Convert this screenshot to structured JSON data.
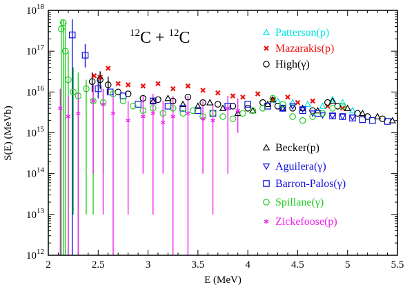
{
  "chart_data": {
    "type": "scatter",
    "title": "",
    "annotation": {
      "a": "12",
      "b": "C + ",
      "c": "12",
      "d": "C"
    },
    "xlabel": "E (MeV)",
    "ylabel": "S(E) (MeVb)",
    "xlim": [
      2,
      5.5
    ],
    "ylim_log10": [
      12,
      18
    ],
    "y_scale": "log",
    "x_ticks": [
      "2",
      "2.5",
      "3",
      "3.5",
      "4",
      "4.5",
      "5",
      "5.5"
    ],
    "x_tick_values": [
      2,
      2.5,
      3,
      3.5,
      4,
      4.5,
      5,
      5.5
    ],
    "y_ticks": [
      {
        "base": "10",
        "exp": "12"
      },
      {
        "base": "10",
        "exp": "13"
      },
      {
        "base": "10",
        "exp": "14"
      },
      {
        "base": "10",
        "exp": "15"
      },
      {
        "base": "10",
        "exp": "16"
      },
      {
        "base": "10",
        "exp": "17"
      },
      {
        "base": "10",
        "exp": "18"
      }
    ],
    "legend_placement": "right",
    "series": [
      {
        "name": "Patterson(p)",
        "color": "#00e5e5",
        "marker": "triangle-up",
        "points": [
          [
            4.3,
            6000000000000000.0
          ],
          [
            4.45,
            5500000000000000.0
          ],
          [
            4.6,
            5000000000000000.0
          ],
          [
            4.75,
            4500000000000000.0
          ],
          [
            4.85,
            6500000000000000.0
          ],
          [
            4.95,
            5500000000000000.0
          ],
          [
            5.05,
            3500000000000000.0
          ]
        ],
        "errors": []
      },
      {
        "name": "Mazarakis(p)",
        "color": "#ee1111",
        "marker": "x-cross",
        "points": [
          [
            2.46,
            2.5e+16
          ],
          [
            2.52,
            2.3e+16
          ],
          [
            2.6,
            3.8e+16
          ],
          [
            2.7,
            1.6e+16
          ],
          [
            2.8,
            1.5e+16
          ],
          [
            2.95,
            1.4e+16
          ],
          [
            3.1,
            1.6e+16
          ],
          [
            3.25,
            1.2e+16
          ],
          [
            3.4,
            1.4e+16
          ],
          [
            3.55,
            1.1e+16
          ],
          [
            3.7,
            9500000000000000.0
          ],
          [
            3.85,
            8000000000000000.0
          ],
          [
            3.95,
            7500000000000000.0
          ],
          [
            4.1,
            9000000000000000.0
          ],
          [
            4.25,
            6500000000000000.0
          ],
          [
            4.4,
            7500000000000000.0
          ],
          [
            4.5,
            5500000000000000.0
          ],
          [
            4.65,
            6000000000000000.0
          ],
          [
            4.8,
            4500000000000000.0
          ],
          [
            4.95,
            4000000000000000.0
          ]
        ],
        "errors": []
      },
      {
        "name": "High(γ)",
        "color": "#000000",
        "marker": "circle",
        "points": [
          [
            2.44,
            1.8e+16
          ],
          [
            2.52,
            2e+16
          ],
          [
            2.6,
            1.5e+16
          ],
          [
            2.7,
            1e+16
          ],
          [
            2.8,
            9000000000000000.0
          ],
          [
            2.95,
            7000000000000000.0
          ],
          [
            3.1,
            6500000000000000.0
          ],
          [
            3.25,
            6000000000000000.0
          ],
          [
            3.4,
            7500000000000000.0
          ],
          [
            3.55,
            5500000000000000.0
          ],
          [
            3.7,
            5000000000000000.0
          ],
          [
            3.85,
            4500000000000000.0
          ],
          [
            4.0,
            4000000000000000.0
          ],
          [
            4.15,
            5500000000000000.0
          ],
          [
            4.3,
            4500000000000000.0
          ],
          [
            4.45,
            4000000000000000.0
          ],
          [
            4.65,
            3500000000000000.0
          ],
          [
            4.8,
            5500000000000000.0
          ],
          [
            4.9,
            4500000000000000.0
          ],
          [
            5.1,
            3000000000000000.0
          ],
          [
            5.2,
            2500000000000000.0
          ],
          [
            5.35,
            2200000000000000.0
          ]
        ],
        "errors": [
          [
            2.44,
            1e+16,
            3e+16
          ],
          [
            2.52,
            1.2e+16,
            3.2e+16
          ],
          [
            2.6,
            9000000000000000.0,
            2.4e+16
          ]
        ]
      },
      {
        "name": "Becker(p)",
        "color": "#000000",
        "marker": "triangle-up-open",
        "points": [
          [
            3.05,
            6000000000000000.0
          ],
          [
            3.2,
            7000000000000000.0
          ],
          [
            3.35,
            5000000000000000.0
          ],
          [
            3.5,
            4500000000000000.0
          ],
          [
            3.62,
            5500000000000000.0
          ],
          [
            3.75,
            4000000000000000.0
          ],
          [
            3.9,
            3000000000000000.0
          ],
          [
            4.05,
            3500000000000000.0
          ],
          [
            4.2,
            5000000000000000.0
          ],
          [
            4.25,
            6500000000000000.0
          ],
          [
            4.35,
            4000000000000000.0
          ],
          [
            4.55,
            4000000000000000.0
          ],
          [
            4.7,
            3500000000000000.0
          ],
          [
            4.85,
            6000000000000000.0
          ],
          [
            5.0,
            4000000000000000.0
          ],
          [
            5.15,
            3000000000000000.0
          ],
          [
            5.3,
            2500000000000000.0
          ],
          [
            5.45,
            2000000000000000.0
          ]
        ],
        "errors": []
      },
      {
        "name": "Aguilera(γ)",
        "color": "#1111dd",
        "marker": "triangle-down",
        "points": [
          [
            4.35,
            4000000000000000.0
          ],
          [
            4.45,
            4500000000000000.0
          ],
          [
            4.55,
            3800000000000000.0
          ],
          [
            4.65,
            3000000000000000.0
          ],
          [
            4.75,
            2700000000000000.0
          ],
          [
            4.85,
            2600000000000000.0
          ],
          [
            4.95,
            2500000000000000.0
          ],
          [
            5.05,
            2400000000000000.0
          ]
        ],
        "errors": []
      },
      {
        "name": "Barron-Palos(γ)",
        "color": "#1111dd",
        "marker": "square",
        "points": [
          [
            2.24,
            2.5e+17
          ],
          [
            2.37,
            8e+16
          ],
          [
            2.5,
            1.2e+16
          ],
          [
            2.62,
            1e+16
          ],
          [
            2.75,
            8000000000000000.0
          ],
          [
            2.9,
            5000000000000000.0
          ],
          [
            3.05,
            6000000000000000.0
          ],
          [
            3.2,
            4500000000000000.0
          ],
          [
            3.35,
            4000000000000000.0
          ],
          [
            3.5,
            3500000000000000.0
          ],
          [
            3.65,
            3000000000000000.0
          ],
          [
            3.8,
            4500000000000000.0
          ],
          [
            4.0,
            5000000000000000.0
          ],
          [
            4.2,
            4500000000000000.0
          ],
          [
            4.35,
            4000000000000000.0
          ],
          [
            4.55,
            3500000000000000.0
          ],
          [
            4.7,
            3000000000000000.0
          ],
          [
            4.85,
            2600000000000000.0
          ],
          [
            4.95,
            2500000000000000.0
          ],
          [
            5.05,
            2300000000000000.0
          ],
          [
            5.15,
            2100000000000000.0
          ],
          [
            5.25,
            2000000000000000.0
          ],
          [
            5.4,
            1900000000000000.0
          ]
        ],
        "errors": [
          [
            2.24,
            1000000000000.0,
            6e+17
          ],
          [
            2.37,
            4e+16,
            1.5e+17
          ],
          [
            2.5,
            7000000000000000.0,
            2e+16
          ]
        ]
      },
      {
        "name": "Spillane(γ)",
        "color": "#22cc22",
        "marker": "circle",
        "points": [
          [
            2.13,
            3.5e+17
          ],
          [
            2.15,
            5e+17
          ],
          [
            2.17,
            1e+17
          ],
          [
            2.2,
            2e+16
          ],
          [
            2.25,
            1e+16
          ],
          [
            2.3,
            8000000000000000.0
          ],
          [
            2.38,
            1.2e+16
          ],
          [
            2.45,
            6000000000000000.0
          ],
          [
            2.55,
            5500000000000000.0
          ],
          [
            2.65,
            9000000000000000.0
          ],
          [
            2.75,
            6000000000000000.0
          ],
          [
            2.85,
            4500000000000000.0
          ],
          [
            2.95,
            3500000000000000.0
          ],
          [
            3.05,
            4000000000000000.0
          ],
          [
            3.15,
            3000000000000000.0
          ],
          [
            3.25,
            4000000000000000.0
          ],
          [
            3.35,
            3000000000000000.0
          ],
          [
            3.45,
            3500000000000000.0
          ],
          [
            3.55,
            2500000000000000.0
          ],
          [
            3.65,
            3000000000000000.0
          ],
          [
            3.75,
            2500000000000000.0
          ],
          [
            3.85,
            2200000000000000.0
          ],
          [
            3.95,
            3000000000000000.0
          ],
          [
            4.05,
            3500000000000000.0
          ],
          [
            4.15,
            4000000000000000.0
          ],
          [
            4.25,
            7000000000000000.0
          ],
          [
            4.35,
            5000000000000000.0
          ],
          [
            4.45,
            2500000000000000.0
          ],
          [
            4.55,
            2000000000000000.0
          ],
          [
            4.65,
            2500000000000000.0
          ],
          [
            4.75,
            3000000000000000.0
          ],
          [
            4.85,
            4000000000000000.0
          ],
          [
            4.95,
            4500000000000000.0
          ]
        ],
        "errors": [
          [
            2.13,
            1000000000000.0,
            6e+17
          ],
          [
            2.15,
            1000000000000.0,
            6e+17
          ],
          [
            2.17,
            1000000000000.0,
            5e+17
          ],
          [
            2.2,
            1000000000000.0,
            1e+17
          ],
          [
            2.25,
            10000000000000.0,
            4e+16
          ],
          [
            2.3,
            1000000000000.0,
            3e+16
          ],
          [
            2.38,
            10000000000000.0,
            2e+16
          ],
          [
            2.45,
            10000000000000.0,
            1.5e+16
          ],
          [
            2.55,
            100000000000000.0,
            1.2e+16
          ]
        ]
      },
      {
        "name": "Zickefoose(p)",
        "color": "#ee22ee",
        "marker": "asterisk",
        "points": [
          [
            2.12,
            4000000000000000.0
          ],
          [
            2.2,
            2500000000000000.0
          ],
          [
            2.3,
            3000000000000000.0
          ],
          [
            2.45,
            6000000000000000.0
          ],
          [
            2.55,
            5000000000000000.0
          ],
          [
            2.65,
            3000000000000000.0
          ],
          [
            2.8,
            2000000000000000.0
          ],
          [
            2.95,
            2500000000000000.0
          ],
          [
            3.05,
            3000000000000000.0
          ],
          [
            3.15,
            1800000000000000.0
          ],
          [
            3.25,
            2500000000000000.0
          ],
          [
            3.4,
            3000000000000000.0
          ],
          [
            3.55,
            2200000000000000.0
          ],
          [
            3.65,
            2000000000000000.0
          ],
          [
            3.8,
            4000000000000000.0
          ],
          [
            3.9,
            3500000000000000.0
          ]
        ],
        "errors": [
          [
            2.12,
            1000000000000.0,
            1.2e+16
          ],
          [
            2.2,
            1000000000000.0,
            8000000000000000.0
          ],
          [
            2.3,
            1000000000000.0,
            1e+16
          ],
          [
            2.45,
            100000000000000.0,
            1.5e+16
          ],
          [
            2.55,
            10000000000000.0,
            1.2e+16
          ],
          [
            2.65,
            1000000000000.0,
            1e+16
          ],
          [
            2.8,
            10000000000000.0,
            6000000000000000.0
          ],
          [
            2.95,
            100000000000000.0,
            8000000000000000.0
          ],
          [
            3.05,
            10000000000000.0,
            9000000000000000.0
          ],
          [
            3.15,
            100000000000000.0,
            6000000000000000.0
          ],
          [
            3.25,
            1000000000000.0,
            8000000000000000.0
          ],
          [
            3.4,
            1000000000000.0,
            8000000000000000.0
          ],
          [
            3.55,
            100000000000000.0,
            6000000000000000.0
          ],
          [
            3.65,
            10000000000000.0,
            5000000000000000.0
          ],
          [
            3.8,
            100000000000000.0,
            8000000000000000.0
          ],
          [
            3.9,
            1000000000000000.0,
            7000000000000000.0
          ]
        ]
      }
    ]
  }
}
